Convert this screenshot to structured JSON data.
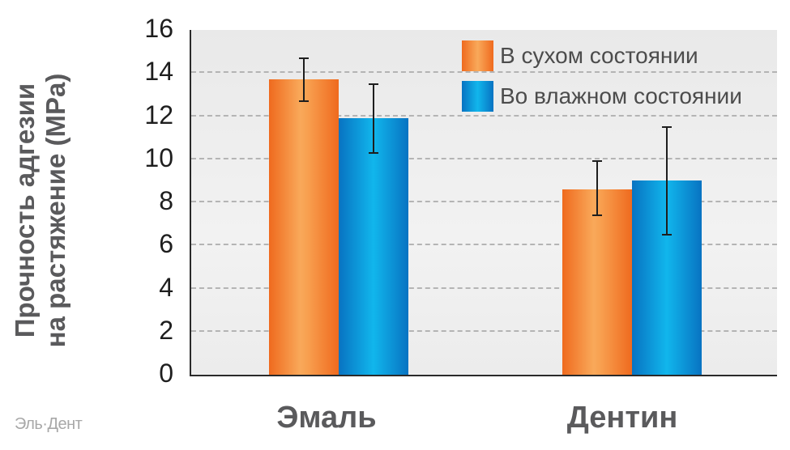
{
  "chart_data": {
    "type": "bar",
    "title": "",
    "xlabel": "",
    "ylabel": "Прочность адгезии на растяжение (MPa)",
    "ylabel_lines": [
      "Прочность адгезии",
      "на растяжение (MPa)"
    ],
    "ylim": [
      0,
      16
    ],
    "yticks": [
      "0",
      "2",
      "4",
      "6",
      "8",
      "10",
      "12",
      "14",
      "16"
    ],
    "grid": true,
    "legend_position": "top-right",
    "categories": [
      "Эмаль",
      "Дентин"
    ],
    "series": [
      {
        "name": "В сухом состоянии",
        "color": "#f58a3a",
        "values": [
          13.7,
          8.6
        ],
        "error_low": [
          12.7,
          7.4
        ],
        "error_high": [
          14.7,
          9.9
        ]
      },
      {
        "name": "Во влажном состоянии",
        "color": "#0a95dc",
        "values": [
          11.9,
          9.0
        ],
        "error_low": [
          10.3,
          6.5
        ],
        "error_high": [
          13.5,
          11.5
        ]
      }
    ]
  },
  "watermark": "Эль·Дент"
}
